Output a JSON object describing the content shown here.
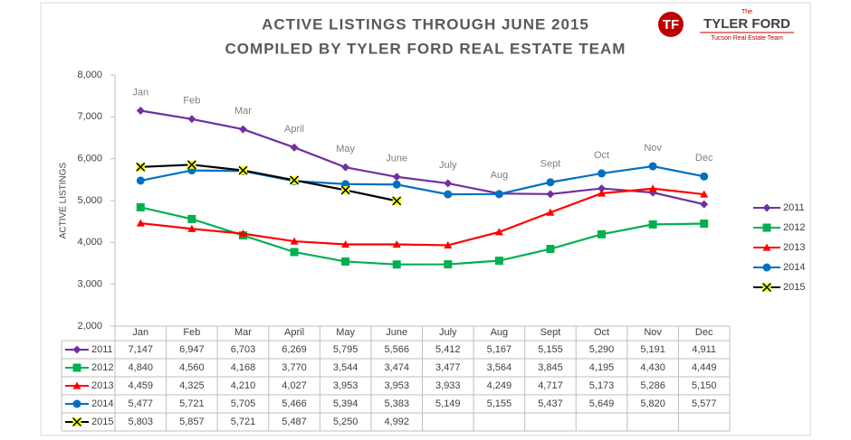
{
  "chart_data": {
    "type": "line",
    "title": "ACTIVE LISTINGS THROUGH JUNE 2015",
    "subtitle": "COMPILED BY TYLER FORD REAL ESTATE TEAM",
    "y_label": "ACTIVE LISTINGS",
    "categories": [
      "Jan",
      "Feb",
      "Mar",
      "April",
      "May",
      "June",
      "July",
      "Aug",
      "Sept",
      "Oct",
      "Nov",
      "Dec"
    ],
    "ylim": [
      2000,
      8000
    ],
    "yticks": [
      {
        "value": 2000,
        "label": "2,000"
      },
      {
        "value": 3000,
        "label": "3,000"
      },
      {
        "value": 4000,
        "label": "4,000"
      },
      {
        "value": 5000,
        "label": "5,000"
      },
      {
        "value": 6000,
        "label": "6,000"
      },
      {
        "value": 7000,
        "label": "7,000"
      },
      {
        "value": 8000,
        "label": "8,000"
      }
    ],
    "legend": "right",
    "series": [
      {
        "name": "2011",
        "color": "#7030a0",
        "marker": "diamond",
        "values": [
          7147,
          6947,
          6703,
          6269,
          5795,
          5566,
          5412,
          5167,
          5155,
          5290,
          5191,
          4911
        ],
        "value_labels": [
          "7,147",
          "6,947",
          "6,703",
          "6,269",
          "5,795",
          "5,566",
          "5,412",
          "5,167",
          "5,155",
          "5,290",
          "5,191",
          "4,911"
        ]
      },
      {
        "name": "2012",
        "color": "#00b050",
        "marker": "square",
        "values": [
          4840,
          4560,
          4168,
          3770,
          3544,
          3474,
          3477,
          3564,
          3845,
          4195,
          4430,
          4449
        ],
        "value_labels": [
          "4,840",
          "4,560",
          "4,168",
          "3,770",
          "3,544",
          "3,474",
          "3,477",
          "3,564",
          "3,845",
          "4,195",
          "4,430",
          "4,449"
        ]
      },
      {
        "name": "2013",
        "color": "#ff0000",
        "marker": "triangle",
        "values": [
          4459,
          4325,
          4210,
          4027,
          3953,
          3953,
          3933,
          4249,
          4717,
          5173,
          5286,
          5150
        ],
        "value_labels": [
          "4,459",
          "4,325",
          "4,210",
          "4,027",
          "3,953",
          "3,953",
          "3,933",
          "4,249",
          "4,717",
          "5,173",
          "5,286",
          "5,150"
        ]
      },
      {
        "name": "2014",
        "color": "#0070c0",
        "marker": "circle",
        "values": [
          5477,
          5721,
          5705,
          5466,
          5394,
          5383,
          5149,
          5155,
          5437,
          5649,
          5820,
          5577
        ],
        "value_labels": [
          "5,477",
          "5,721",
          "5,705",
          "5,466",
          "5,394",
          "5,383",
          "5,149",
          "5,155",
          "5,437",
          "5,649",
          "5,820",
          "5,577"
        ]
      },
      {
        "name": "2015",
        "color": "#000000",
        "marker": "x",
        "values": [
          5803,
          5857,
          5721,
          5487,
          5250,
          4992,
          null,
          null,
          null,
          null,
          null,
          null
        ],
        "value_labels": [
          "5,803",
          "5,857",
          "5,721",
          "5,487",
          "5,250",
          "4,992",
          null,
          null,
          null,
          null,
          null,
          null
        ]
      }
    ]
  },
  "logo": {
    "mark": "TF",
    "small": "The",
    "name": "TYLER FORD",
    "tagline": "Tucson Real Estate Team"
  }
}
